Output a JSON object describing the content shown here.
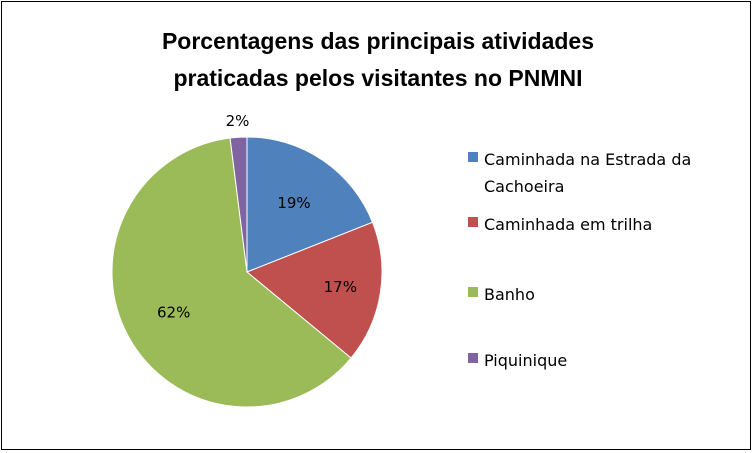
{
  "chart_data": {
    "type": "pie",
    "title_lines": [
      "Porcentagens das principais atividades",
      "praticadas pelos visitantes no PNMNI"
    ],
    "categories": [
      "Caminhada na Estrada da Cachoeira",
      "Caminhada em trilha",
      "Banho",
      "Piquinique"
    ],
    "legend_lines": [
      [
        "Caminhada na Estrada da",
        "Cachoeira"
      ],
      [
        "Caminhada em trilha"
      ],
      [
        "Banho"
      ],
      [
        "Piquinique"
      ]
    ],
    "values": [
      19,
      17,
      62,
      2
    ],
    "labels": [
      "19%",
      "17%",
      "62%",
      "2%"
    ],
    "colors": [
      "#4f81bd",
      "#c0504d",
      "#9bbb59",
      "#8064a2"
    ],
    "legend_position": "right",
    "start_angle_deg": 0,
    "direction": "clockwise"
  }
}
